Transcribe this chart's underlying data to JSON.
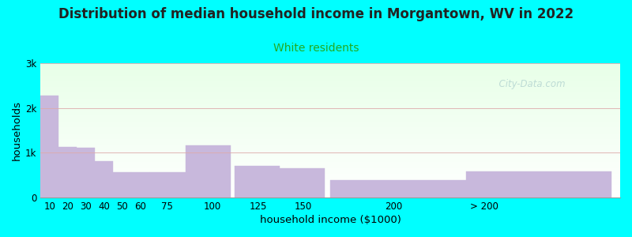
{
  "title": "Distribution of median household income in Morgantown, WV in 2022",
  "subtitle": "White residents",
  "xlabel": "household income ($1000)",
  "ylabel": "households",
  "background_color": "#00FFFF",
  "bar_color": "#C8B8DC",
  "bar_edge_color": "#C8B8DC",
  "title_fontsize": 12,
  "subtitle_fontsize": 10,
  "axis_label_fontsize": 9.5,
  "tick_fontsize": 8.5,
  "subtitle_color": "#22AA22",
  "title_color": "#222222",
  "watermark": "  City-Data.com",
  "ylim": [
    0,
    3000
  ],
  "yticks": [
    0,
    1000,
    2000,
    3000
  ],
  "ytick_labels": [
    "0",
    "1k",
    "2k",
    "3k"
  ],
  "bar_lefts": [
    5,
    15,
    25,
    35,
    45,
    55,
    65,
    85,
    112,
    137,
    165,
    240
  ],
  "bar_widths": [
    10,
    10,
    10,
    10,
    10,
    10,
    20,
    25,
    25,
    25,
    75,
    80
  ],
  "bar_values": [
    2280,
    1130,
    1120,
    820,
    570,
    560,
    560,
    1170,
    710,
    660,
    390,
    590
  ],
  "xtick_positions": [
    10,
    20,
    30,
    40,
    50,
    60,
    75,
    100,
    125,
    150,
    200,
    250
  ],
  "xtick_labels": [
    "10",
    "20",
    "30",
    "40",
    "50",
    "60",
    "75",
    "100",
    "125",
    "150",
    "200",
    "> 200"
  ],
  "xlim": [
    5,
    325
  ]
}
